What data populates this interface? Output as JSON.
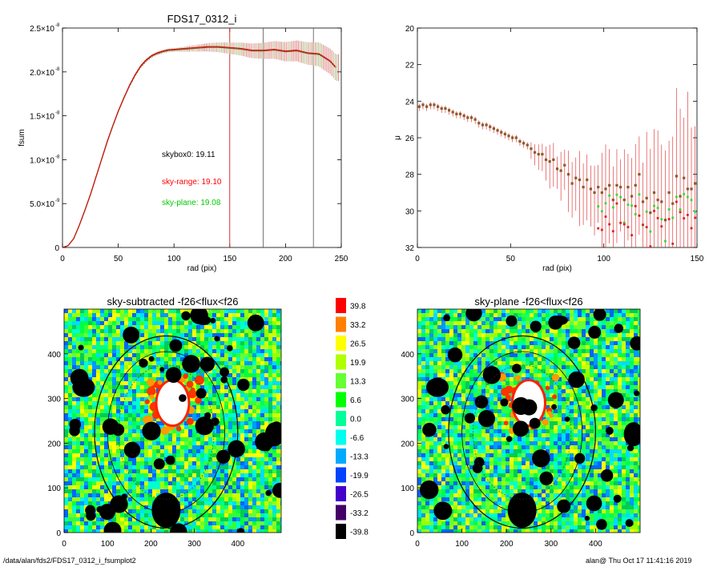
{
  "chart_data": [
    {
      "type": "line",
      "title": "FDS17_0312_i",
      "xlabel": "rad (pix)",
      "ylabel": "fsum",
      "xlim": [
        0,
        250
      ],
      "ylim": [
        0,
        2.5e-08
      ],
      "xticks": [
        "0",
        "50",
        "100",
        "150",
        "200",
        "250"
      ],
      "yticks": [
        "0",
        "5.0×10",
        "1.0×10",
        "1.5×10",
        "2.0×10",
        "2.5×10"
      ],
      "ytick_exp": "-8",
      "ytick_exp2": "-9",
      "annotations": [
        {
          "text": "skybox0: 19.11",
          "color": "#000000"
        },
        {
          "text": "sky-range: 19.10",
          "color": "#ff0000"
        },
        {
          "text": "sky-plane: 19.08",
          "color": "#00cc00"
        }
      ],
      "vlines": [
        150,
        180,
        225
      ],
      "series": [
        {
          "color": "#8b5a2b",
          "x": [
            0,
            5,
            10,
            15,
            20,
            25,
            30,
            35,
            40,
            45,
            50,
            55,
            60,
            65,
            70,
            75,
            80,
            85,
            90,
            95,
            100,
            110,
            120,
            130,
            140,
            150,
            160,
            170,
            180,
            190,
            200,
            210,
            220,
            230,
            240,
            245
          ],
          "y": [
            0,
            2e-10,
            1e-09,
            2.5e-09,
            4.2e-09,
            6e-09,
            8e-09,
            1e-08,
            1.2e-08,
            1.38e-08,
            1.55e-08,
            1.7e-08,
            1.84e-08,
            1.96e-08,
            2.06e-08,
            2.13e-08,
            2.18e-08,
            2.21e-08,
            2.23e-08,
            2.245e-08,
            2.25e-08,
            2.26e-08,
            2.27e-08,
            2.28e-08,
            2.28e-08,
            2.27e-08,
            2.26e-08,
            2.24e-08,
            2.24e-08,
            2.25e-08,
            2.23e-08,
            2.24e-08,
            2.21e-08,
            2.2e-08,
            2.12e-08,
            2.05e-08
          ]
        }
      ]
    },
    {
      "type": "scatter",
      "xlabel": "rad (pix)",
      "ylabel": "μ",
      "xlim": [
        0,
        150
      ],
      "ylim": [
        32,
        20
      ],
      "xticks": [
        "0",
        "50",
        "100",
        "150"
      ],
      "yticks": [
        "20",
        "22",
        "24",
        "26",
        "28",
        "30",
        "32"
      ],
      "series": [
        {
          "color": "#8b5a2b",
          "x": [
            1,
            3,
            5,
            7,
            9,
            11,
            13,
            15,
            17,
            19,
            21,
            23,
            25,
            27,
            29,
            31,
            33,
            35,
            37,
            39,
            41,
            43,
            45,
            47,
            49,
            51,
            53,
            55,
            57,
            59,
            61,
            63,
            65,
            67,
            69,
            71,
            73,
            75,
            77,
            79,
            81,
            83,
            85,
            87,
            89,
            91,
            93,
            95,
            97,
            99,
            101,
            103,
            105,
            107,
            109,
            111,
            113,
            115,
            117,
            119,
            121,
            123,
            125,
            127,
            129,
            131,
            133,
            135,
            137,
            139,
            141,
            143,
            145,
            147,
            149
          ],
          "y": [
            24.3,
            24.2,
            24.3,
            24.2,
            24.2,
            24.3,
            24.4,
            24.4,
            24.5,
            24.6,
            24.7,
            24.7,
            24.8,
            24.9,
            24.9,
            25.0,
            25.2,
            25.3,
            25.3,
            25.4,
            25.5,
            25.6,
            25.7,
            25.8,
            25.9,
            26.0,
            26.0,
            26.2,
            26.3,
            26.4,
            26.6,
            26.8,
            26.9,
            26.9,
            27.2,
            27.3,
            27.2,
            27.7,
            27.8,
            27.5,
            28.0,
            28.5,
            28.2,
            28.3,
            28.7,
            28.3,
            28.8,
            29.0,
            28.7,
            29.0,
            28.8,
            28.6,
            29.4,
            28.6,
            28.7,
            29.4,
            28.7,
            29.2,
            28.6,
            28.0,
            29.5,
            29.3,
            30.1,
            29.0,
            29.4,
            29.5,
            30.5,
            29.0,
            29.6,
            28.1,
            29.2,
            28.2,
            28.8,
            28.8,
            28.5
          ]
        }
      ]
    },
    {
      "type": "heatmap",
      "title": "sky-subtracted -f26<flux<f26",
      "xlim": [
        0,
        500
      ],
      "ylim": [
        0,
        500
      ],
      "xticks": [
        "0",
        "100",
        "200",
        "300",
        "400"
      ],
      "yticks": [
        "0",
        "100",
        "200",
        "300",
        "400"
      ]
    },
    {
      "type": "heatmap",
      "title": "sky-plane -f26<flux<f26",
      "xlim": [
        0,
        500
      ],
      "ylim": [
        0,
        500
      ],
      "xticks": [
        "0",
        "100",
        "200",
        "300",
        "400"
      ],
      "yticks": [
        "0",
        "100",
        "200",
        "300",
        "400"
      ]
    }
  ],
  "colorbar": {
    "labels": [
      "39.8",
      "33.2",
      "26.5",
      "19.9",
      "13.3",
      "6.6",
      "0.0",
      "-6.6",
      "-13.3",
      "-19.9",
      "-26.5",
      "-33.2",
      "-39.8"
    ],
    "colors": [
      "#ff0000",
      "#ff8000",
      "#ffff00",
      "#b0ff00",
      "#66ff33",
      "#00ff00",
      "#00ff99",
      "#00ffee",
      "#00aaff",
      "#0044ff",
      "#4400cc",
      "#440066",
      "#000000"
    ]
  },
  "footer": {
    "left": "/data/alan/fds2/FDS17_0312_i_fsumplot2",
    "right": "alan@  Thu Oct 17 11:41:16 2019"
  }
}
